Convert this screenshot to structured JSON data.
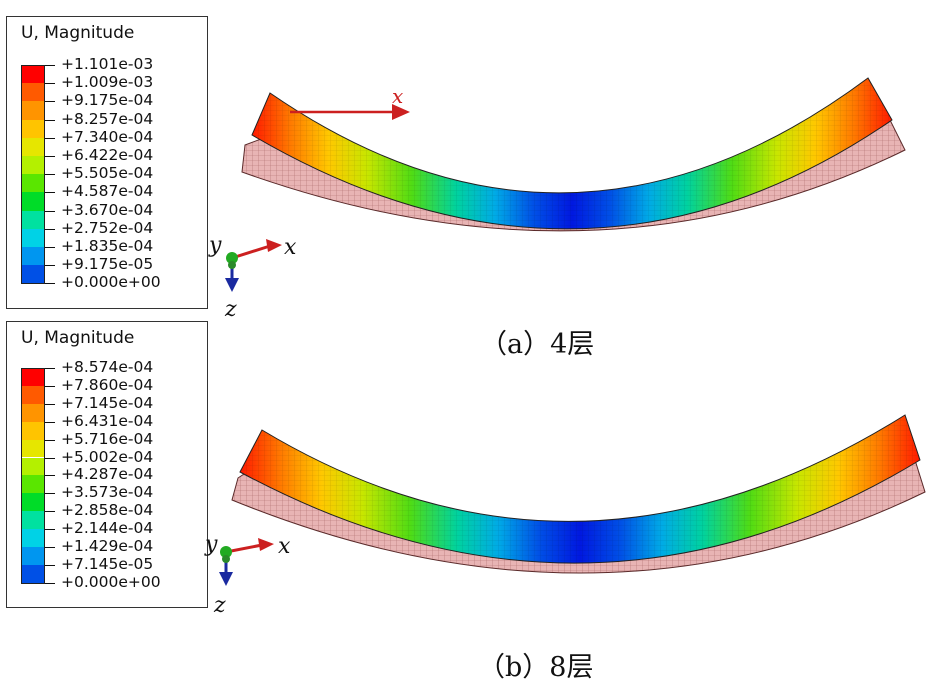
{
  "panels": [
    {
      "id": "a",
      "legend_title": "U, Magnitude",
      "legend_values": [
        "+1.101e-03",
        "+1.009e-03",
        "+9.175e-04",
        "+8.257e-04",
        "+7.340e-04",
        "+6.422e-04",
        "+5.505e-04",
        "+4.587e-04",
        "+3.670e-04",
        "+2.752e-04",
        "+1.835e-04",
        "+9.175e-05",
        "+0.000e+00"
      ],
      "caption": "（a）4层",
      "triad": {
        "x": "x",
        "y": "y",
        "z": "z"
      },
      "local_axis_label": "x"
    },
    {
      "id": "b",
      "legend_title": "U, Magnitude",
      "legend_values": [
        "+8.574e-04",
        "+7.860e-04",
        "+7.145e-04",
        "+6.431e-04",
        "+5.716e-04",
        "+5.002e-04",
        "+4.287e-04",
        "+3.573e-04",
        "+2.858e-04",
        "+2.144e-04",
        "+1.429e-04",
        "+7.145e-05",
        "+0.000e+00"
      ],
      "caption": "（b）8层",
      "triad": {
        "x": "x",
        "y": "y",
        "z": "z"
      }
    }
  ],
  "colors": {
    "contour": [
      "#ff0000",
      "#ff5a00",
      "#ff9400",
      "#ffc400",
      "#e6e600",
      "#b4f000",
      "#5ae600",
      "#00dc28",
      "#00e1a0",
      "#00d2e6",
      "#0096f0",
      "#0050e6",
      "#0014e6"
    ],
    "undeformed_mesh": "#d28c8c",
    "axis_red": "#cc2020",
    "axis_green": "#22aa22",
    "axis_blue": "#1a2aa0"
  }
}
